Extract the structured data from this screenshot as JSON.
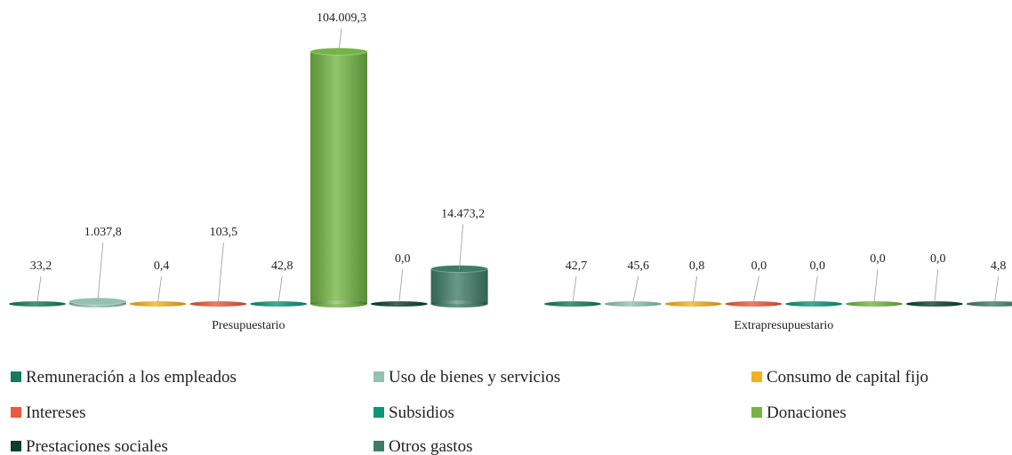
{
  "chart_data": {
    "type": "bar",
    "categories": [
      "Presupuestario",
      "Extrapresupuestario"
    ],
    "series": [
      {
        "name": "Remuneración a los empleados",
        "color": "#157a5c",
        "values": [
          33.2,
          42.7
        ],
        "value_labels": [
          "33,2",
          "42,7"
        ]
      },
      {
        "name": "Uso de bienes y servicios",
        "color": "#93c2b2",
        "values": [
          1037.8,
          45.6
        ],
        "value_labels": [
          "1.037,8",
          "45,6"
        ]
      },
      {
        "name": "Consumo de capital fijo",
        "color": "#f2b21f",
        "values": [
          0.4,
          0.8
        ],
        "value_labels": [
          "0,4",
          "0,8"
        ]
      },
      {
        "name": "Intereses",
        "color": "#ea5a3c",
        "values": [
          103.5,
          0.0
        ],
        "value_labels": [
          "103,5",
          "0,0"
        ]
      },
      {
        "name": "Subsidios",
        "color": "#0c9576",
        "values": [
          42.8,
          0.0
        ],
        "value_labels": [
          "42,8",
          "0,0"
        ]
      },
      {
        "name": "Donaciones",
        "color": "#72b544",
        "values": [
          104009.3,
          0.0
        ],
        "value_labels": [
          "104.009,3",
          "0,0"
        ]
      },
      {
        "name": "Prestaciones sociales",
        "color": "#083f2c",
        "values": [
          0.0,
          0.0
        ],
        "value_labels": [
          "0,0",
          "0,0"
        ]
      },
      {
        "name": "Otros gastos",
        "color": "#3f7c68",
        "values": [
          14473.2,
          4.8
        ],
        "value_labels": [
          "14.473,2",
          "4,8"
        ]
      }
    ]
  }
}
